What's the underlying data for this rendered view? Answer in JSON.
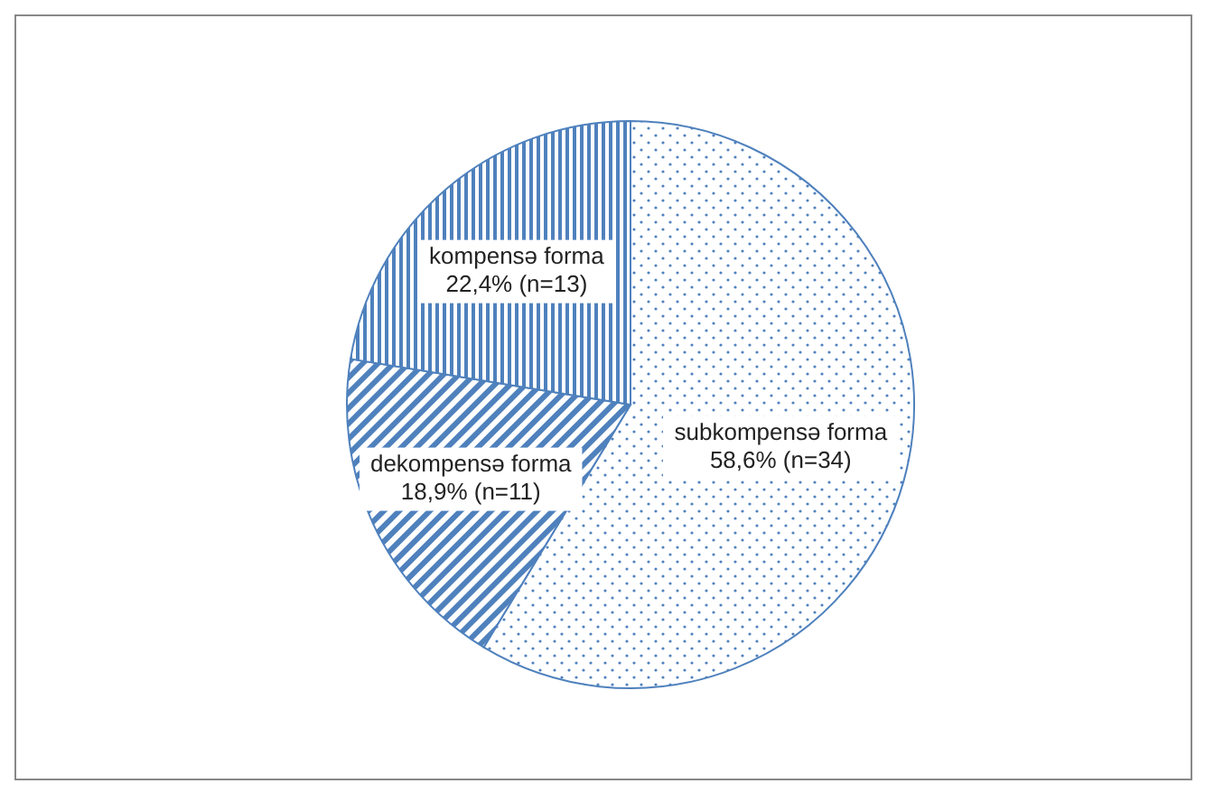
{
  "chart_data": {
    "type": "pie",
    "categories": [
      "subkompensə forma",
      "dekompensə forma",
      "kompensə forma"
    ],
    "values": [
      58.6,
      18.9,
      22.4
    ],
    "value_labels": [
      "58,6% (n=34)",
      "18,9% (n=11)",
      "22,4% (n=13)"
    ],
    "colors": [
      "#4f81bd",
      "#4f81bd",
      "#4f81bd"
    ],
    "legend": false
  }
}
